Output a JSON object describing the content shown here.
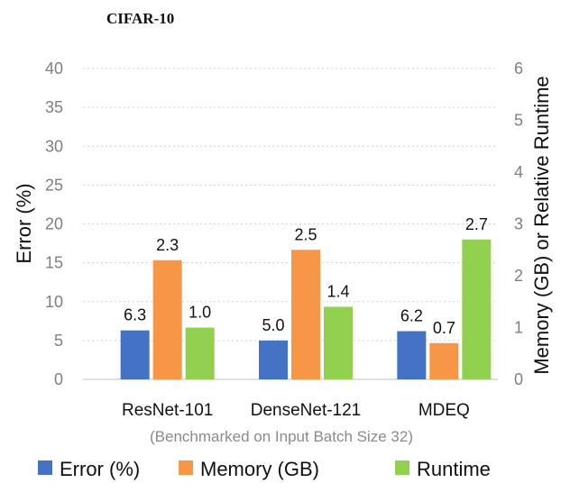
{
  "chart_data": {
    "type": "bar",
    "title": "CIFAR-10",
    "categories": [
      "ResNet-101",
      "DenseNet-121",
      "MDEQ"
    ],
    "series": [
      {
        "name": "Error (%)",
        "axis": "left",
        "color": "#4472c4",
        "values": [
          6.3,
          5.0,
          6.2
        ],
        "labels": [
          "6.3",
          "5.0",
          "6.2"
        ]
      },
      {
        "name": "Memory (GB)",
        "axis": "right",
        "color": "#f79646",
        "values": [
          2.3,
          2.5,
          0.7
        ],
        "labels": [
          "2.3",
          "2.5",
          "0.7"
        ]
      },
      {
        "name": "Runtime",
        "axis": "right",
        "color": "#92d050",
        "values": [
          1.0,
          1.4,
          2.7
        ],
        "labels": [
          "1.0",
          "1.4",
          "2.7"
        ]
      }
    ],
    "ylabel": "Error (%)",
    "ylim": [
      0,
      40
    ],
    "yticks": [
      "0",
      "5",
      "10",
      "15",
      "20",
      "25",
      "30",
      "35",
      "40"
    ],
    "y2label": "Memory (GB) or Relative Runtime",
    "y2lim": [
      0,
      6
    ],
    "y2ticks": [
      "0",
      "1",
      "2",
      "3",
      "4",
      "5",
      "6"
    ],
    "annotation": "(Benchmarked on Input Batch Size 32)",
    "grid": true,
    "legend": "bottom"
  }
}
